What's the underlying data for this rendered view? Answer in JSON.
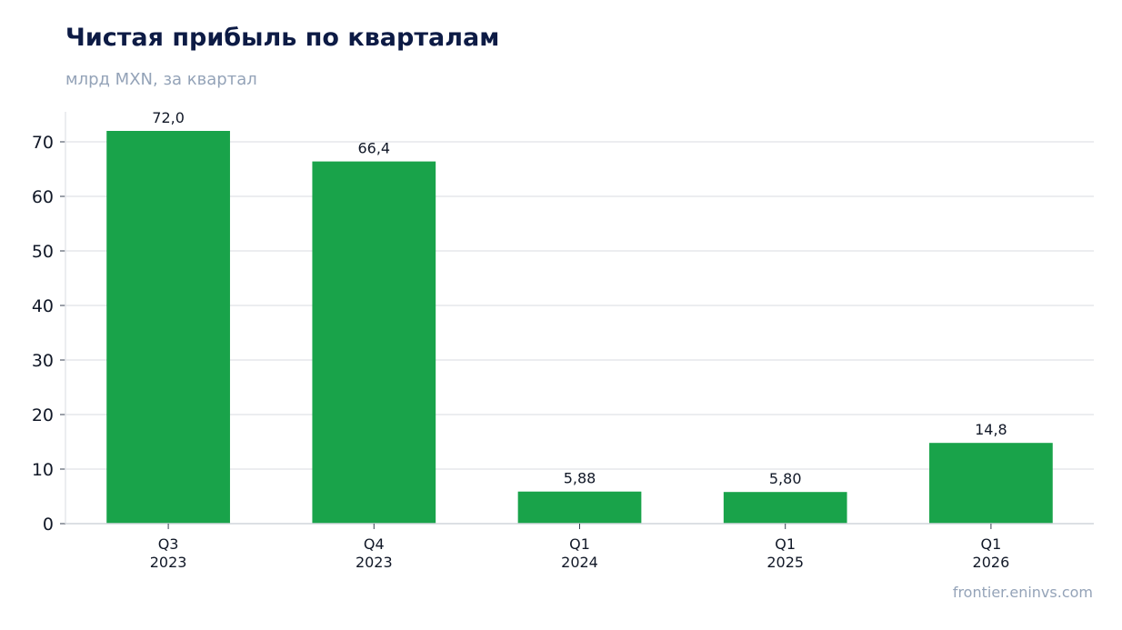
{
  "title": "Чистая прибыль по кварталам",
  "subtitle": "млрд MXN, за квартал",
  "source": "frontier.eninvs.com",
  "colors": {
    "bar": "#19a34a",
    "grid": "#e5e7eb",
    "axis": "#d1d5db",
    "title": "#0d1b45",
    "muted": "#94a3b8"
  },
  "chart_data": {
    "type": "bar",
    "title": "Чистая прибыль по кварталам",
    "subtitle": "млрд MXN, за квартал",
    "categories": [
      [
        "Q3",
        "2023"
      ],
      [
        "Q4",
        "2023"
      ],
      [
        "Q1",
        "2024"
      ],
      [
        "Q1",
        "2025"
      ],
      [
        "Q1",
        "2026"
      ]
    ],
    "values": [
      72.0,
      66.4,
      5.88,
      5.8,
      14.8
    ],
    "data_labels": [
      "72,0",
      "66,4",
      "5,88",
      "5,80",
      "14,8"
    ],
    "yticks": [
      0,
      10,
      20,
      30,
      40,
      50,
      60,
      70
    ],
    "ylim": [
      0,
      75.5
    ],
    "grid": true,
    "xlabel": "",
    "ylabel": ""
  }
}
